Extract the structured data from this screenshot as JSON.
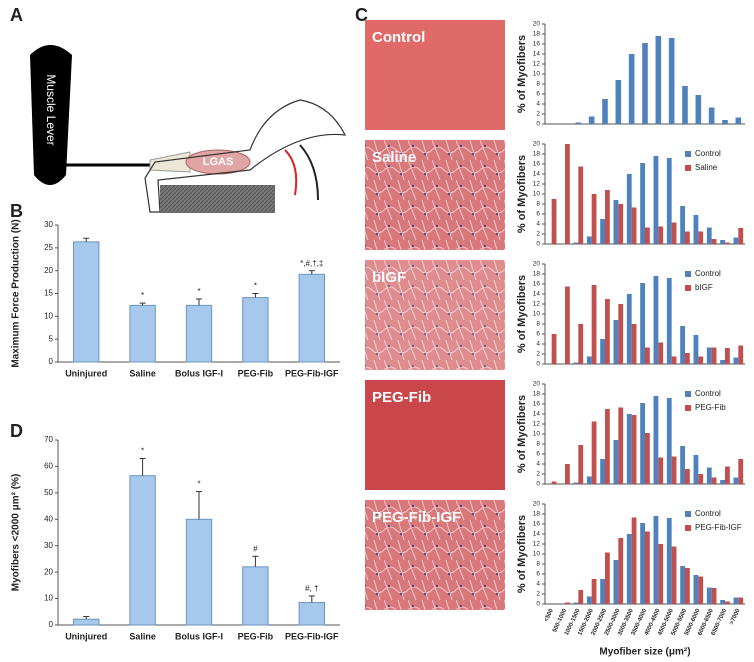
{
  "panel_labels": [
    "A",
    "B",
    "C",
    "D"
  ],
  "diagram": {
    "lever": "Muscle Lever",
    "muscle": "LGAS"
  },
  "micrographs": [
    "Control",
    "Saline",
    "bIGF",
    "PEG-Fib",
    "PEG-Fib-IGF"
  ],
  "chart_data": [
    {
      "type": "bar",
      "ylabel": "Maximum Force Production (N)",
      "categories": [
        "Uninjured",
        "Saline",
        "Bolus IGF-I",
        "PEG-Fib",
        "PEG-Fib-IGF"
      ],
      "values": [
        26.3,
        12.4,
        12.4,
        14.1,
        19.2
      ],
      "errors": [
        0.8,
        0.5,
        1.4,
        0.9,
        0.8
      ],
      "annotations": [
        null,
        "*",
        "*",
        "*",
        "*,#,†,‡"
      ],
      "color": "#a6c8ec",
      "ylim": [
        0,
        30
      ],
      "yticks": [
        0,
        5,
        10,
        15,
        20,
        25,
        30
      ]
    },
    {
      "type": "bar",
      "ylabel": "Myofibers <2000 μm² (%)",
      "categories": [
        "Uninjured",
        "Saline",
        "Bolus IGF-I",
        "PEG-Fib",
        "PEG-Fib-IGF"
      ],
      "values": [
        2.2,
        56.5,
        40,
        22,
        8.5
      ],
      "errors": [
        1,
        6.5,
        10.5,
        4,
        2.5
      ],
      "annotations": [
        null,
        "*",
        "*",
        "#",
        "#, †"
      ],
      "color": "#a6c8ec",
      "ylim": [
        0,
        70
      ],
      "yticks": [
        0,
        10,
        20,
        30,
        40,
        50,
        60,
        70
      ]
    },
    {
      "type": "bar",
      "ylabel": "% of Myofibers",
      "color": "#4f81bd",
      "values": [
        0,
        0,
        0.3,
        1.5,
        5,
        8.8,
        14,
        16.2,
        17.6,
        17.2,
        7.6,
        5.8,
        3.3,
        0.8,
        1.3
      ],
      "ylim": [
        0,
        20
      ],
      "yticks": [
        0,
        2,
        4,
        6,
        8,
        10,
        12,
        14,
        16,
        18,
        20
      ]
    },
    {
      "type": "bar",
      "ylabel": "% of Myofibers",
      "series": [
        {
          "name": "Control",
          "color": "#4f81bd",
          "values": [
            0,
            0,
            0.3,
            1.5,
            5,
            8.8,
            14,
            16.2,
            17.6,
            17.2,
            7.6,
            5.8,
            3.3,
            0.8,
            1.3
          ]
        },
        {
          "name": "Saline",
          "color": "#c0504d",
          "values": [
            9,
            20,
            15.5,
            10,
            10.8,
            8,
            7.3,
            3.3,
            3.5,
            4.3,
            2.5,
            2.5,
            1,
            0.3,
            3.2
          ]
        }
      ],
      "ylim": [
        0,
        20
      ],
      "yticks": [
        0,
        2,
        4,
        6,
        8,
        10,
        12,
        14,
        16,
        18,
        20
      ]
    },
    {
      "type": "bar",
      "ylabel": "% of Myofibers",
      "series": [
        {
          "name": "Control",
          "color": "#4f81bd",
          "values": [
            0,
            0,
            0.3,
            1.5,
            5,
            8.8,
            14,
            16.2,
            17.6,
            17.2,
            7.6,
            5.8,
            3.3,
            0.8,
            1.3
          ]
        },
        {
          "name": "bIGF",
          "color": "#c0504d",
          "values": [
            6,
            15.5,
            8,
            15.8,
            13,
            12,
            8,
            3.3,
            4.3,
            1.5,
            2.2,
            1.5,
            3.3,
            3.2,
            3.7
          ]
        }
      ],
      "ylim": [
        0,
        20
      ],
      "yticks": [
        0,
        2,
        4,
        6,
        8,
        10,
        12,
        14,
        16,
        18,
        20
      ]
    },
    {
      "type": "bar",
      "ylabel": "% of Myofibers",
      "series": [
        {
          "name": "Control",
          "color": "#4f81bd",
          "values": [
            0,
            0,
            0.3,
            1.5,
            5,
            8.8,
            14,
            16.2,
            17.6,
            17.2,
            7.6,
            5.8,
            3.3,
            0.8,
            1.3
          ]
        },
        {
          "name": "PEG-Fib",
          "color": "#c0504d",
          "values": [
            0.5,
            4,
            7.8,
            12.5,
            15,
            15.3,
            13.8,
            10.2,
            5.3,
            5.5,
            3,
            2,
            1.3,
            3.5,
            5
          ]
        }
      ],
      "ylim": [
        0,
        20
      ],
      "yticks": [
        0,
        2,
        4,
        6,
        8,
        10,
        12,
        14,
        16,
        18,
        20
      ]
    },
    {
      "type": "bar",
      "ylabel": "% of Myofibers",
      "xlabel": "Myofiber size (μm²)",
      "categories": [
        "<500",
        "500-1000",
        "1000-1500",
        "1500-2000",
        "2000-2500",
        "2500-3000",
        "3000-3500",
        "3500-4000",
        "4000-4500",
        "4500-5000",
        "5000-5500",
        "5500-6000",
        "6000-6500",
        "6500-7000",
        ">7000"
      ],
      "series": [
        {
          "name": "Control",
          "color": "#4f81bd",
          "values": [
            0,
            0,
            0.3,
            1.5,
            5,
            8.8,
            14,
            16.2,
            17.6,
            17.2,
            7.6,
            5.8,
            3.3,
            0.8,
            1.3
          ]
        },
        {
          "name": "PEG-Fib-IGF",
          "color": "#c0504d",
          "values": [
            0,
            0.3,
            2.8,
            5,
            10.3,
            13.2,
            17.3,
            14.5,
            12,
            11.5,
            7.2,
            5.5,
            3.2,
            0.5,
            1.3
          ]
        }
      ],
      "ylim": [
        0,
        20
      ],
      "yticks": [
        0,
        2,
        4,
        6,
        8,
        10,
        12,
        14,
        16,
        18,
        20
      ]
    }
  ]
}
